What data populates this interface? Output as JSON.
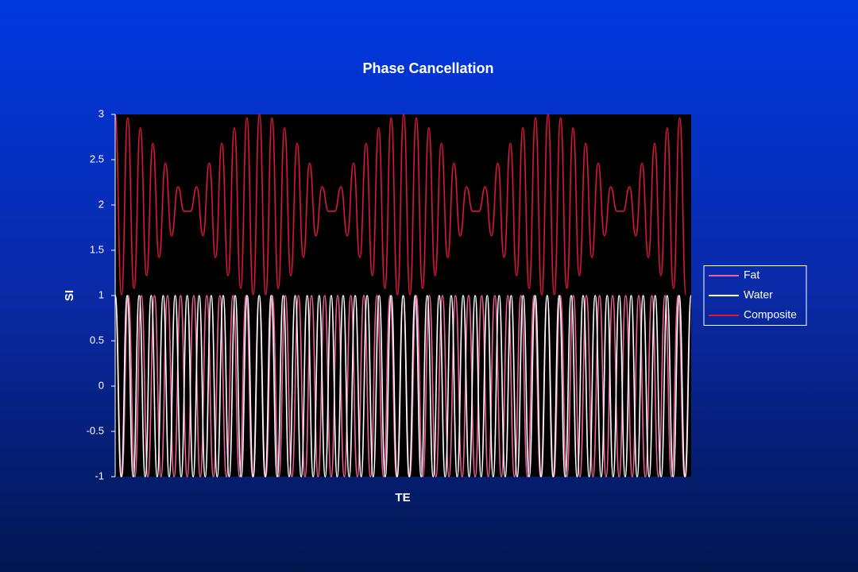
{
  "chart_data": {
    "type": "line",
    "title": "Phase Cancellation",
    "x_label": "TE",
    "y_label": "SI",
    "xlim": [
      0,
      1056
    ],
    "ylim": [
      -1,
      3
    ],
    "yticks": [
      -1,
      -0.5,
      0,
      0.5,
      1,
      1.5,
      2,
      2.5,
      3
    ],
    "grid": false,
    "legend": "right",
    "series": [
      {
        "name": "Fat",
        "color": "#f0609a",
        "x": [
          0,
          12,
          24,
          36,
          48,
          60,
          72,
          84,
          96,
          108,
          120,
          132,
          144,
          156,
          168,
          180,
          192,
          204,
          216,
          228,
          240,
          252,
          264,
          276,
          288,
          300,
          312,
          324,
          336,
          348,
          360,
          372,
          384,
          396,
          408,
          420,
          432,
          444,
          456,
          468,
          480,
          492,
          504,
          516,
          528,
          540,
          552,
          564,
          576,
          588,
          600,
          612,
          624,
          636,
          648,
          660,
          672,
          684,
          696,
          708,
          720,
          732,
          744,
          756,
          768,
          780,
          792,
          804,
          816,
          828,
          840,
          852,
          864,
          876,
          888,
          900,
          912,
          924,
          936,
          948,
          960,
          972,
          984,
          996,
          1008,
          1020,
          1032,
          1044,
          1056
        ],
        "values": [
          1,
          -1,
          1,
          -1,
          1,
          -1,
          1,
          -1,
          1,
          -1,
          1,
          -1,
          1,
          -1,
          1,
          -1,
          1,
          -1,
          1,
          -1,
          1,
          -1,
          1,
          -1,
          1,
          -1,
          1,
          -1,
          1,
          -1,
          1,
          -1,
          1,
          -1,
          1,
          -1,
          1,
          -1,
          1,
          -1,
          1,
          -1,
          1,
          -1,
          1,
          -1,
          1,
          -1,
          1,
          -1,
          1,
          -1,
          1,
          -1,
          1,
          -1,
          1,
          -1,
          1,
          -1,
          1,
          -1,
          1,
          -1,
          1,
          -1,
          1,
          -1,
          1,
          -1,
          1,
          -1,
          1,
          -1,
          1,
          -1,
          1,
          -1,
          1,
          -1,
          1,
          -1,
          1,
          -1,
          1,
          -1,
          1,
          -1,
          1
        ]
      },
      {
        "name": "Water",
        "color": "#ffffff",
        "x": [
          0,
          11,
          22,
          33,
          44,
          55,
          66,
          77,
          88,
          99,
          110,
          121,
          132,
          143,
          154,
          165,
          176,
          187,
          198,
          209,
          220,
          231,
          242,
          253,
          264,
          275,
          286,
          297,
          308,
          319,
          330,
          341,
          352,
          363,
          374,
          385,
          396,
          407,
          418,
          429,
          440,
          451,
          462,
          473,
          484,
          495,
          506,
          517,
          528,
          539,
          550,
          561,
          572,
          583,
          594,
          605,
          616,
          627,
          638,
          649,
          660,
          671,
          682,
          693,
          704,
          715,
          726,
          737,
          748,
          759,
          770,
          781,
          792,
          803,
          814,
          825,
          836,
          847,
          858,
          869,
          880,
          891,
          902,
          913,
          924,
          935,
          946,
          957,
          968,
          979,
          990,
          1001,
          1012,
          1023,
          1034,
          1045,
          1056
        ],
        "values": [
          1,
          -1,
          1,
          -1,
          1,
          -1,
          1,
          -1,
          1,
          -1,
          1,
          -1,
          1,
          -1,
          1,
          -1,
          1,
          -1,
          1,
          -1,
          1,
          -1,
          1,
          -1,
          1,
          -1,
          1,
          -1,
          1,
          -1,
          1,
          -1,
          1,
          -1,
          1,
          -1,
          1,
          -1,
          1,
          -1,
          1,
          -1,
          1,
          -1,
          1,
          -1,
          1,
          -1,
          1,
          -1,
          1,
          -1,
          1,
          -1,
          1,
          -1,
          1,
          -1,
          1,
          -1,
          1,
          -1,
          1,
          -1,
          1,
          -1,
          1,
          -1,
          1,
          -1,
          1,
          -1,
          1,
          -1,
          1,
          -1,
          1,
          -1,
          1,
          -1,
          1,
          -1,
          1,
          -1,
          1,
          -1,
          1,
          -1,
          1,
          -1,
          1,
          -1,
          1,
          -1,
          1,
          -1,
          1
        ]
      },
      {
        "name": "Composite",
        "color": "#e0143c",
        "x": [
          0,
          11.5,
          23,
          34.5,
          46,
          57.5,
          69,
          80.5,
          92,
          103.5,
          115,
          126.5,
          138,
          149.5,
          161,
          172.5,
          184,
          195.5,
          207,
          218.5,
          230,
          241.5,
          253,
          264.5,
          276,
          287.5,
          299,
          310.5,
          322,
          333.5,
          345,
          356.5,
          368,
          379.5,
          391,
          402.5,
          414,
          425.5,
          437,
          448.5,
          460,
          471.5,
          483,
          494.5,
          506,
          517.5,
          529,
          540.5,
          552,
          563.5,
          575,
          586.5,
          598,
          609.5,
          621,
          632.5,
          644,
          655.5,
          667,
          678.5,
          690,
          701.5,
          713,
          724.5,
          736,
          747.5,
          759,
          770.5,
          782,
          793.5,
          805,
          816.5,
          828,
          839.5,
          851,
          862.5,
          874,
          885.5,
          897,
          908.5,
          920,
          931.5,
          943,
          954.5,
          966,
          977.5,
          989,
          1000.5,
          1012,
          1023.5,
          1035,
          1046.5
        ],
        "values": [
          3,
          1.01,
          2.96,
          1.08,
          2.85,
          1.22,
          2.68,
          1.42,
          2.46,
          1.66,
          2.2,
          1.93,
          1.93,
          2.2,
          1.66,
          2.46,
          1.42,
          2.68,
          1.22,
          2.85,
          1.08,
          2.96,
          1.01,
          3,
          1.01,
          2.96,
          1.08,
          2.85,
          1.22,
          2.68,
          1.42,
          2.46,
          1.66,
          2.2,
          1.93,
          1.93,
          2.2,
          1.66,
          2.46,
          1.42,
          2.68,
          1.22,
          2.85,
          1.08,
          2.96,
          1.01,
          3,
          1.01,
          2.96,
          1.08,
          2.85,
          1.22,
          2.68,
          1.42,
          2.46,
          1.66,
          2.2,
          1.93,
          1.93,
          2.2,
          1.66,
          2.46,
          1.42,
          2.68,
          1.22,
          2.85,
          1.08,
          2.96,
          1.01,
          3,
          1.01,
          2.96,
          1.08,
          2.85,
          1.22,
          2.68,
          1.42,
          2.46,
          1.66,
          2.2,
          1.93,
          1.93,
          2.2,
          1.66,
          2.46,
          1.42,
          2.68,
          1.22,
          2.85,
          1.08,
          2.96,
          1.01
        ]
      }
    ]
  }
}
